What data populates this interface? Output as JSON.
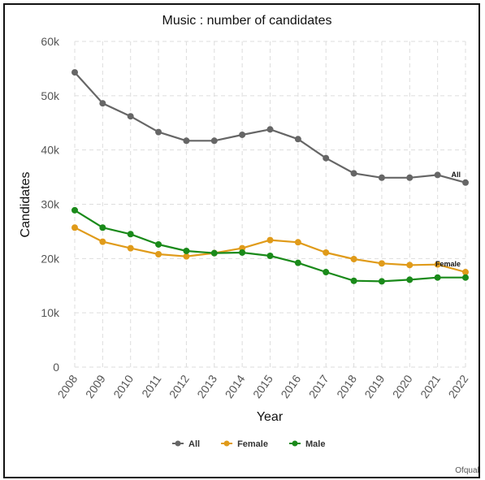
{
  "chart_data": {
    "type": "line",
    "title": "Music : number of candidates",
    "xlabel": "Year",
    "ylabel": "Candidates",
    "x": [
      "2008",
      "2009",
      "2010",
      "2011",
      "2012",
      "2013",
      "2014",
      "2015",
      "2016",
      "2017",
      "2018",
      "2019",
      "2020",
      "2021",
      "2022"
    ],
    "ylim": [
      0,
      60000
    ],
    "yticks": [
      0,
      10000,
      20000,
      30000,
      40000,
      50000,
      60000
    ],
    "ytick_labels": [
      "0",
      "10k",
      "20k",
      "30k",
      "40k",
      "50k",
      "60k"
    ],
    "grid": true,
    "legend_position": "bottom",
    "series": [
      {
        "name": "All",
        "color": "#666666",
        "end_label": "All",
        "values": [
          54300,
          48600,
          46200,
          43300,
          41700,
          41700,
          42800,
          43800,
          42000,
          38500,
          35700,
          34900,
          34900,
          35400,
          34000
        ]
      },
      {
        "name": "Female",
        "color": "#e09b1a",
        "end_label": "Female",
        "values": [
          25700,
          23100,
          21900,
          20800,
          20400,
          21000,
          21900,
          23400,
          23000,
          21100,
          19900,
          19100,
          18800,
          18900,
          17500
        ]
      },
      {
        "name": "Male",
        "color": "#1a8a1a",
        "end_label": "",
        "values": [
          28900,
          25700,
          24500,
          22600,
          21400,
          21000,
          21100,
          20500,
          19200,
          17500,
          15900,
          15800,
          16100,
          16500,
          16500
        ]
      }
    ],
    "source": "Ofqual"
  }
}
